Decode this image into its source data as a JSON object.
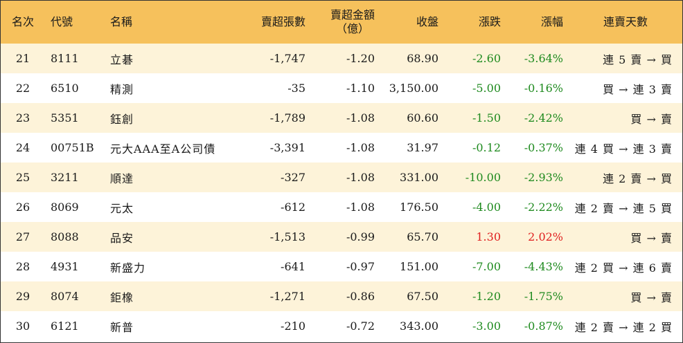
{
  "headers": {
    "rank": "名次",
    "code": "代號",
    "name": "名稱",
    "net_sell_shares": "賣超張數",
    "net_sell_amount_line1": "賣超金額",
    "net_sell_amount_line2": "（億）",
    "close": "收盤",
    "change": "漲跌",
    "change_pct": "漲幅",
    "streak": "連賣天數"
  },
  "colors": {
    "header_bg": "#f6c15c",
    "odd_row_bg": "#fdf3d9",
    "negative": "#1e8a1e",
    "positive": "#e02020"
  },
  "rows": [
    {
      "rank": "21",
      "code": "8111",
      "name": "立碁",
      "net_sell_shares": "-1,747",
      "net_sell_amount": "-1.20",
      "close": "68.90",
      "change": "-2.60",
      "change_pct": "-3.64%",
      "direction": "neg",
      "streak": "連 5 賣 → 買"
    },
    {
      "rank": "22",
      "code": "6510",
      "name": "精測",
      "net_sell_shares": "-35",
      "net_sell_amount": "-1.10",
      "close": "3,150.00",
      "change": "-5.00",
      "change_pct": "-0.16%",
      "direction": "neg",
      "streak": "買 → 連 3 賣"
    },
    {
      "rank": "23",
      "code": "5351",
      "name": "鈺創",
      "net_sell_shares": "-1,789",
      "net_sell_amount": "-1.08",
      "close": "60.60",
      "change": "-1.50",
      "change_pct": "-2.42%",
      "direction": "neg",
      "streak": "買 → 賣"
    },
    {
      "rank": "24",
      "code": "00751B",
      "name": "元大AAA至A公司債",
      "net_sell_shares": "-3,391",
      "net_sell_amount": "-1.08",
      "close": "31.97",
      "change": "-0.12",
      "change_pct": "-0.37%",
      "direction": "neg",
      "streak": "連 4 買 → 連 3 賣"
    },
    {
      "rank": "25",
      "code": "3211",
      "name": "順達",
      "net_sell_shares": "-327",
      "net_sell_amount": "-1.08",
      "close": "331.00",
      "change": "-10.00",
      "change_pct": "-2.93%",
      "direction": "neg",
      "streak": "連 2 賣 → 買"
    },
    {
      "rank": "26",
      "code": "8069",
      "name": "元太",
      "net_sell_shares": "-612",
      "net_sell_amount": "-1.08",
      "close": "176.50",
      "change": "-4.00",
      "change_pct": "-2.22%",
      "direction": "neg",
      "streak": "連 2 賣 → 連 5 買"
    },
    {
      "rank": "27",
      "code": "8088",
      "name": "品安",
      "net_sell_shares": "-1,513",
      "net_sell_amount": "-0.99",
      "close": "65.70",
      "change": "1.30",
      "change_pct": "2.02%",
      "direction": "pos",
      "streak": "買 → 賣"
    },
    {
      "rank": "28",
      "code": "4931",
      "name": "新盛力",
      "net_sell_shares": "-641",
      "net_sell_amount": "-0.97",
      "close": "151.00",
      "change": "-7.00",
      "change_pct": "-4.43%",
      "direction": "neg",
      "streak": "連 2 買 → 連 6 賣"
    },
    {
      "rank": "29",
      "code": "8074",
      "name": "鉅橡",
      "net_sell_shares": "-1,271",
      "net_sell_amount": "-0.86",
      "close": "67.50",
      "change": "-1.20",
      "change_pct": "-1.75%",
      "direction": "neg",
      "streak": "買 → 賣"
    },
    {
      "rank": "30",
      "code": "6121",
      "name": "新普",
      "net_sell_shares": "-210",
      "net_sell_amount": "-0.72",
      "close": "343.00",
      "change": "-3.00",
      "change_pct": "-0.87%",
      "direction": "neg",
      "streak": "連 2 賣 → 連 2 買"
    }
  ]
}
